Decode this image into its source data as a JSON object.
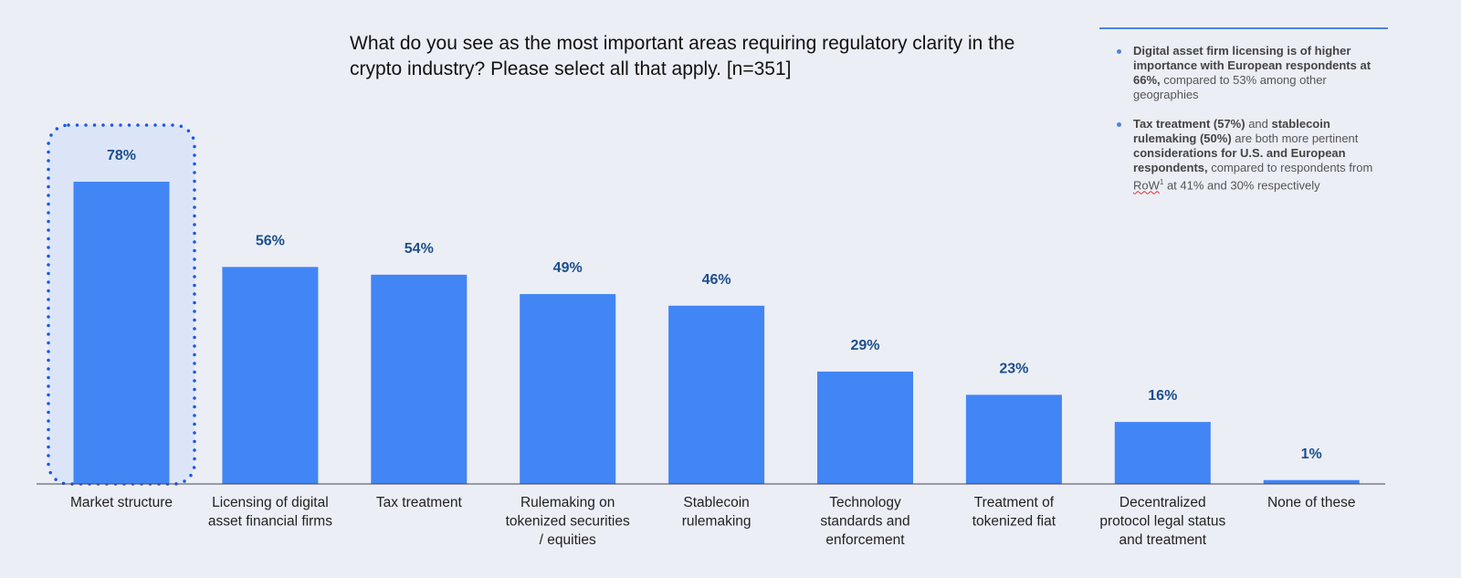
{
  "chart_data": {
    "type": "bar",
    "title": "What do you see as the most important areas requiring regulatory clarity in the crypto industry? Please select all that apply. [n=351]",
    "categories": [
      [
        "Market structure"
      ],
      [
        "Licensing of digital",
        "asset financial firms"
      ],
      [
        "Tax treatment"
      ],
      [
        "Rulemaking on",
        "tokenized securities",
        "/ equities"
      ],
      [
        "Stablecoin",
        "rulemaking"
      ],
      [
        "Technology",
        "standards and",
        "enforcement"
      ],
      [
        "Treatment of",
        "tokenized fiat"
      ],
      [
        "Decentralized",
        "protocol legal status",
        "and treatment"
      ],
      [
        "None of these"
      ]
    ],
    "values": [
      78,
      56,
      54,
      49,
      46,
      29,
      23,
      16,
      1
    ],
    "value_labels": [
      "78%",
      "56%",
      "54%",
      "49%",
      "46%",
      "29%",
      "23%",
      "16%",
      "1%"
    ],
    "highlighted_index": 0,
    "xlabel": "",
    "ylabel": "",
    "ylim": [
      0,
      100
    ],
    "colors": {
      "bar": "#4285f4",
      "label": "#1c4f8c",
      "highlight": "#1a56e8"
    }
  },
  "notes": [
    {
      "parts": [
        [
          "b",
          "Digital asset firm licensing is of higher importance with European respondents at 66%,"
        ],
        [
          "t",
          " compared to 53% among other geographies"
        ]
      ]
    },
    {
      "parts": [
        [
          "b",
          "Tax treatment (57%)"
        ],
        [
          "t",
          " and "
        ],
        [
          "b",
          "stablecoin rulemaking (50%)"
        ],
        [
          "t",
          " are both more pertinent "
        ],
        [
          "b",
          "considerations for U.S. and European respondents,"
        ],
        [
          "t",
          " compared to respondents from "
        ],
        [
          "s",
          "RoW"
        ],
        [
          "sup",
          "1"
        ],
        [
          "t",
          " at 41% and 30% respectively"
        ]
      ]
    }
  ]
}
